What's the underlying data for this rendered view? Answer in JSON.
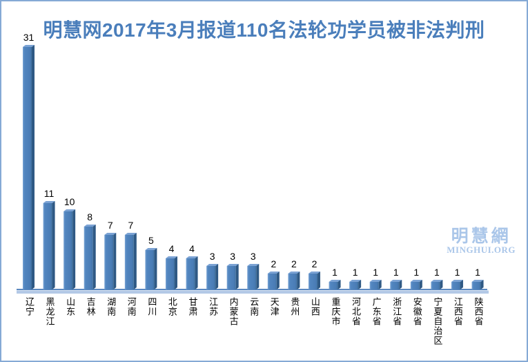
{
  "frame": {
    "border_color": "#85a9d5",
    "background": "#ffffff"
  },
  "title": {
    "text": "明慧网2017年3月报道110名法轮功学员被非法判刑",
    "color": "#4a7ebb"
  },
  "watermark": {
    "cjk": "明慧網",
    "latin": "MINGHUI.ORG",
    "color": "#aac6e9"
  },
  "chart_data": {
    "type": "bar",
    "style": "3d-column",
    "title": "明慧网2017年3月报道110名法轮功学员被非法判刑",
    "categories": [
      "辽宁",
      "黑龙江",
      "山东",
      "吉林",
      "湖南",
      "河南",
      "四川",
      "北京",
      "甘肃",
      "江苏",
      "内蒙古",
      "云南",
      "天津",
      "贵州",
      "山西",
      "重庆市",
      "河北省",
      "广东省",
      "浙江省",
      "安徽省",
      "宁夏自治区",
      "江西省",
      "陕西省"
    ],
    "values": [
      31,
      11,
      10,
      8,
      7,
      7,
      5,
      4,
      4,
      3,
      3,
      3,
      2,
      2,
      2,
      1,
      1,
      1,
      1,
      1,
      1,
      1,
      1
    ],
    "total": 110,
    "xlabel": "",
    "ylabel": "",
    "ylim": [
      0,
      33
    ],
    "grid": false,
    "legend": false,
    "data_labels": true,
    "data_label_color": "#000000",
    "category_label_color": "#000000",
    "bar_colors": {
      "front": "#4e81bd",
      "front_highlight": "#79a3d3",
      "front_shade": "#40719f",
      "side": "#2f5984",
      "top": "#7ca3d4"
    },
    "axis_line_color": "#5b88bf",
    "floor_color": "#b3c9e6"
  }
}
